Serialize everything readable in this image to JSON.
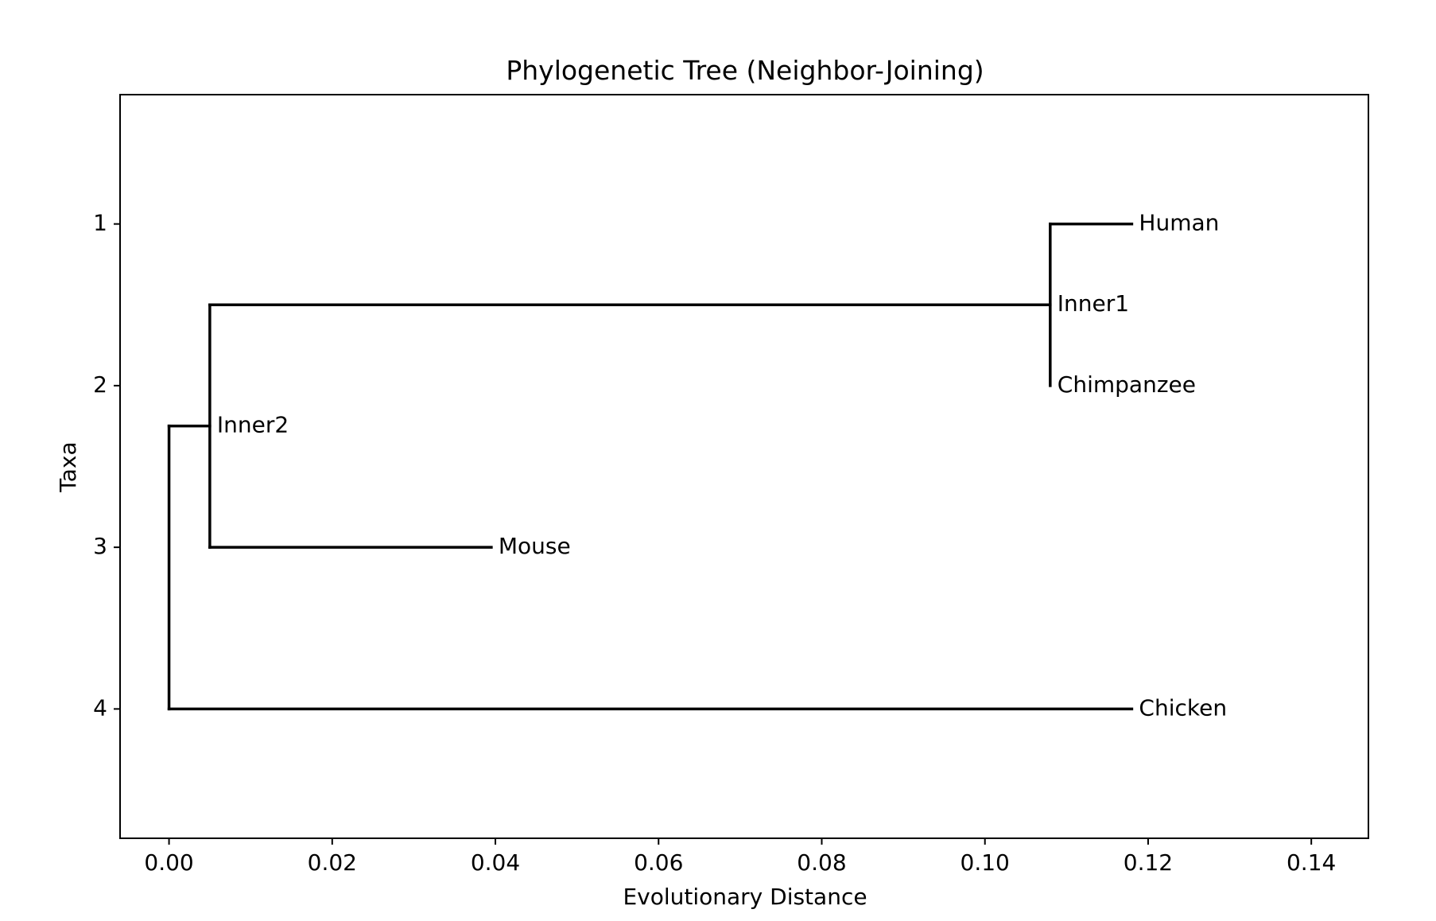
{
  "chart_data": {
    "type": "dendrogram",
    "title": "Phylogenetic Tree (Neighbor-Joining)",
    "xlabel": "Evolutionary Distance",
    "ylabel": "Taxa",
    "xlim": [
      -0.006,
      0.147
    ],
    "ylim": [
      4.8,
      0.2
    ],
    "xticks": [
      0.0,
      0.02,
      0.04,
      0.06,
      0.08,
      0.1,
      0.12,
      0.14
    ],
    "xtick_labels": [
      "0.00",
      "0.02",
      "0.04",
      "0.06",
      "0.08",
      "0.10",
      "0.12",
      "0.14"
    ],
    "yticks": [
      1,
      2,
      3,
      4
    ],
    "ytick_labels": [
      "1",
      "2",
      "3",
      "4"
    ],
    "grid": false,
    "nodes": [
      {
        "name": "Human",
        "x": 0.118,
        "y": 1
      },
      {
        "name": "Inner1",
        "x": 0.108,
        "y": 1.5
      },
      {
        "name": "Chimpanzee",
        "x": 0.108,
        "y": 2
      },
      {
        "name": "Inner2",
        "x": 0.005,
        "y": 2.25
      },
      {
        "name": "Mouse",
        "x": 0.0395,
        "y": 3
      },
      {
        "name": "Chicken",
        "x": 0.118,
        "y": 4
      }
    ],
    "segments": [
      {
        "x1": 0.108,
        "y1": 1,
        "x2": 0.118,
        "y2": 1
      },
      {
        "x1": 0.108,
        "y1": 1,
        "x2": 0.108,
        "y2": 2
      },
      {
        "x1": 0.005,
        "y1": 1.5,
        "x2": 0.108,
        "y2": 1.5
      },
      {
        "x1": 0.005,
        "y1": 1.5,
        "x2": 0.005,
        "y2": 3
      },
      {
        "x1": 0.005,
        "y1": 3,
        "x2": 0.0395,
        "y2": 3
      },
      {
        "x1": 0.0,
        "y1": 2.25,
        "x2": 0.005,
        "y2": 2.25
      },
      {
        "x1": 0.0,
        "y1": 2.25,
        "x2": 0.0,
        "y2": 4
      },
      {
        "x1": 0.0,
        "y1": 4,
        "x2": 0.118,
        "y2": 4
      }
    ],
    "line_color": "#000000"
  }
}
